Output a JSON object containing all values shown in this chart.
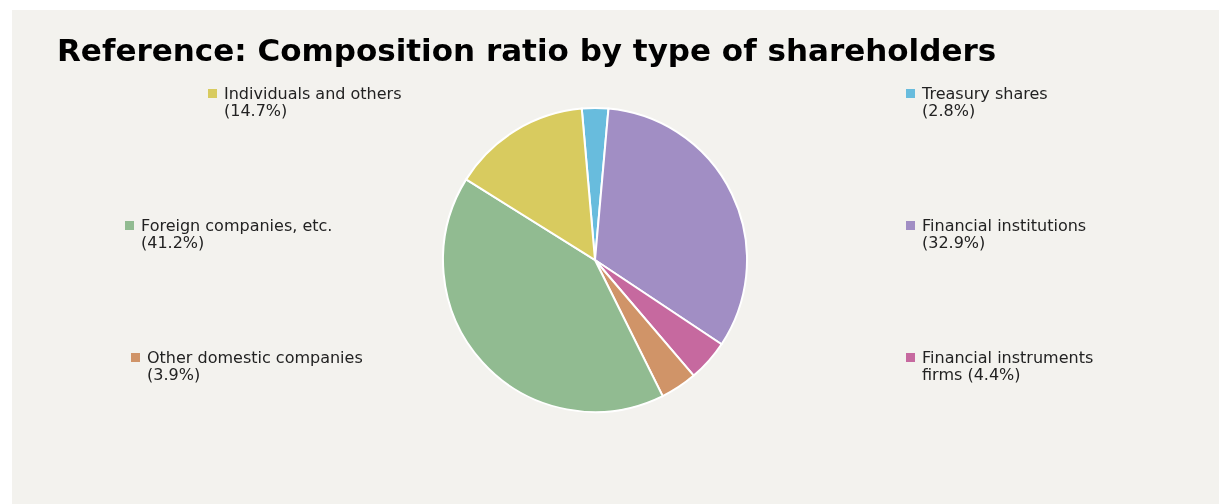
{
  "chart_data": {
    "type": "pie",
    "title": "Reference: Composition ratio by type of shareholders",
    "categories": [
      "Treasury shares",
      "Financial institutions",
      "Financial instruments firms",
      "Other domestic companies",
      "Foreign companies, etc.",
      "Individuals and others"
    ],
    "values": [
      2.8,
      32.9,
      4.4,
      3.9,
      41.2,
      14.7
    ],
    "colors": [
      "#68bcdd",
      "#a18ec4",
      "#c6699f",
      "#d09468",
      "#91bb91",
      "#d8cb5f"
    ],
    "legend": "left and right",
    "value_labels": [
      "(2.8%)",
      "(32.9%)",
      "(4.4%)",
      "(3.9%)",
      "(41.2%)",
      "(14.7%)"
    ]
  }
}
